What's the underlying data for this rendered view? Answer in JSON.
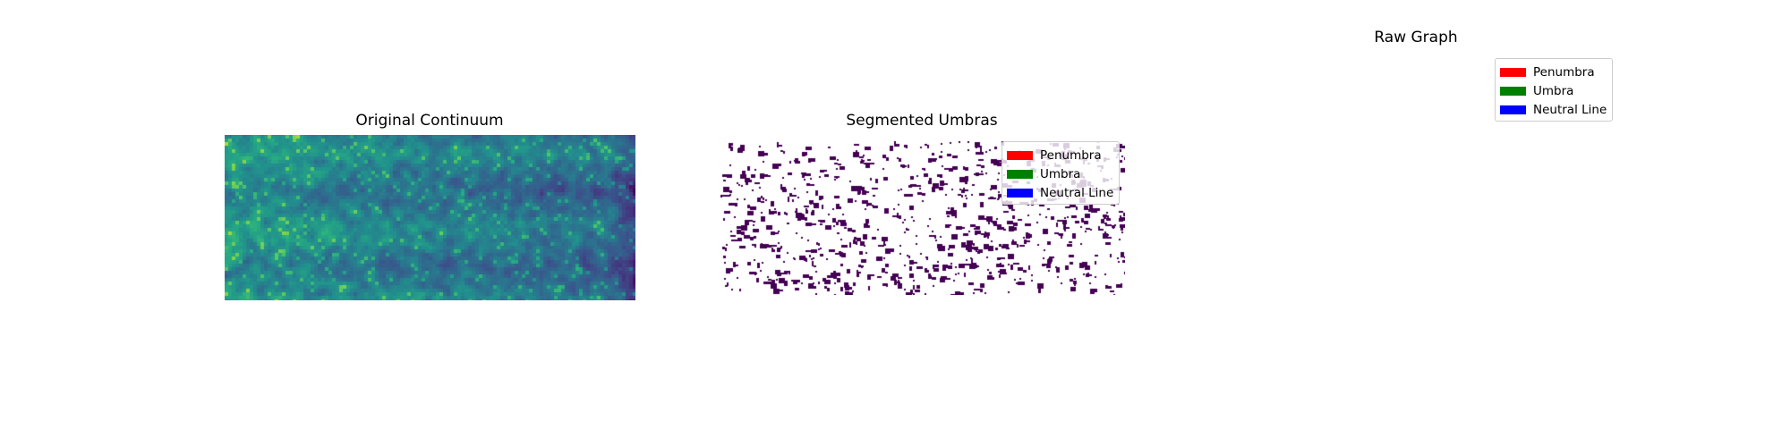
{
  "figure": {
    "panels": [
      {
        "title": "Original Continuum"
      },
      {
        "title": "Segmented Umbras"
      },
      {
        "title": "Raw Graph"
      }
    ]
  },
  "legend_entries": [
    {
      "label": "Penumbra",
      "color": "#ff0000"
    },
    {
      "label": "Umbra",
      "color": "#008000"
    },
    {
      "label": "Neutral Line",
      "color": "#0000ff"
    }
  ],
  "chart_data": [
    {
      "type": "heatmap",
      "title": "Original Continuum",
      "colormap": "viridis",
      "axes_visible": false,
      "description_gradient": "brighter yellow-green granules on left, darker blue toward right edge"
    },
    {
      "type": "heatmap",
      "title": "Segmented Umbras",
      "colormap": "binary-mask",
      "mask_color": "#440154",
      "background": "#ffffff",
      "axes_visible": false,
      "legend": {
        "placement": "upper-right",
        "entries": [
          "Penumbra",
          "Umbra",
          "Neutral Line"
        ]
      }
    },
    {
      "type": "scatter",
      "title": "Raw Graph",
      "axes_visible": false,
      "legend": {
        "placement": "upper-right",
        "entries": [
          "Penumbra",
          "Umbra",
          "Neutral Line"
        ]
      }
    }
  ]
}
